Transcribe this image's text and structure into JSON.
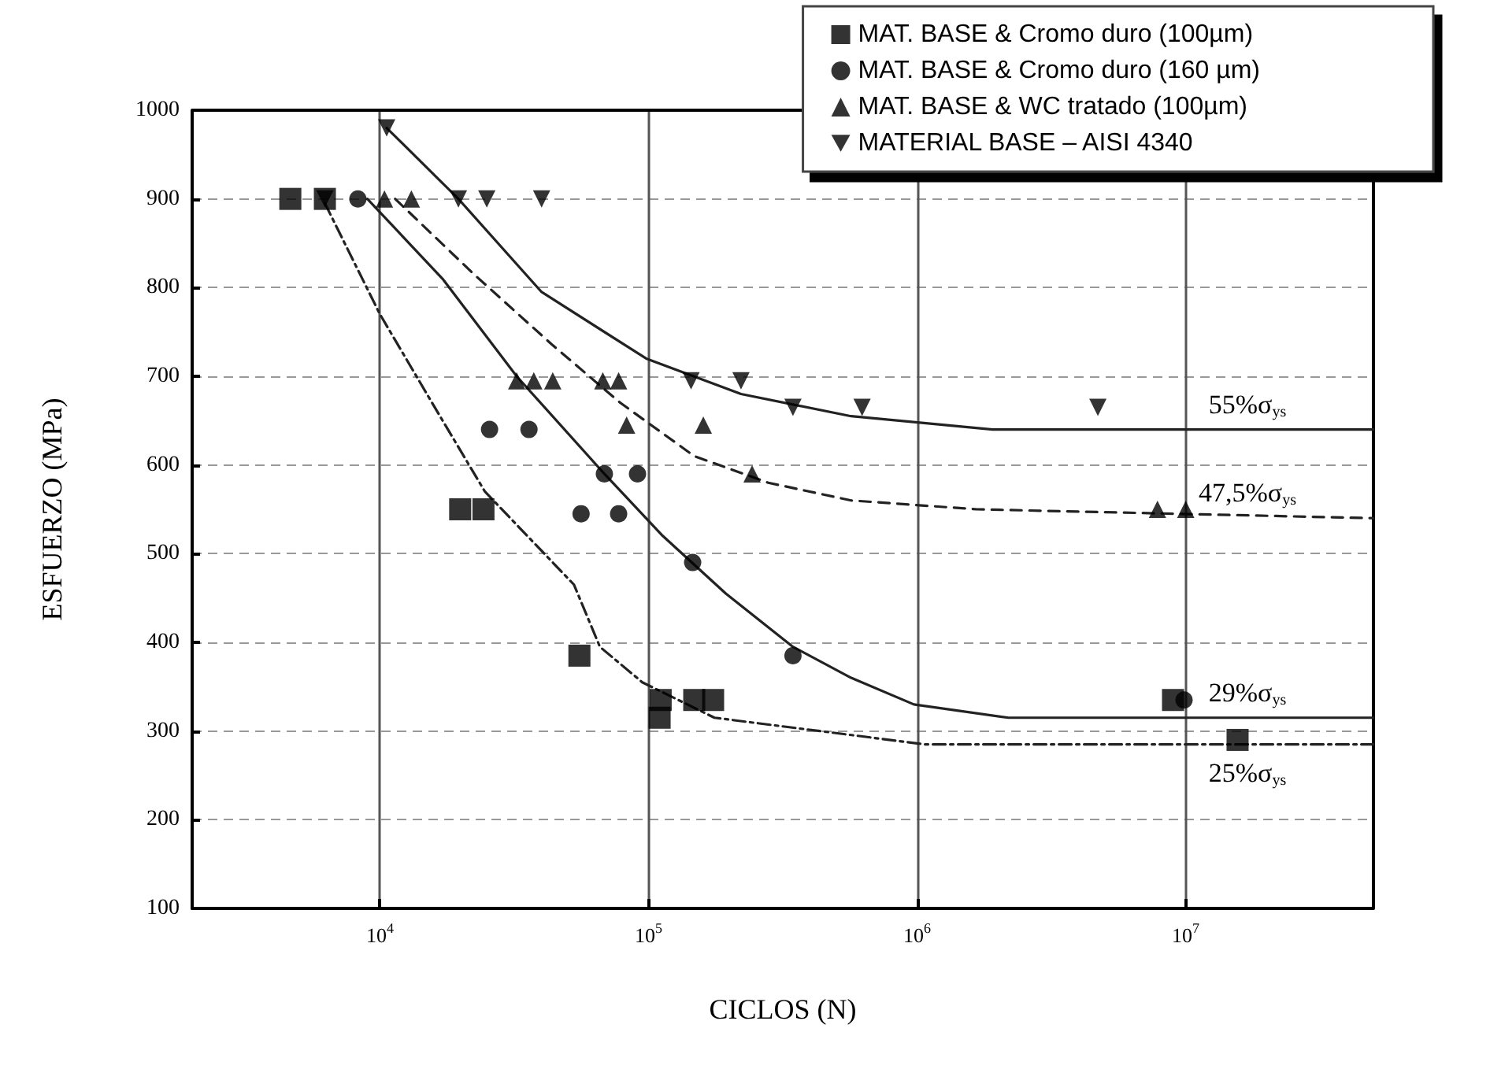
{
  "chart_data": {
    "type": "scatter",
    "xlabel": "CICLOS (N)",
    "ylabel": "ESFUERZO (MPa)",
    "log": "x",
    "grid": true,
    "legend": "top right",
    "xlim": [
      2000,
      50000000
    ],
    "ylim": [
      100,
      1000
    ],
    "xticks": [
      {
        "value": 10000,
        "label": "10$^{4}$"
      },
      {
        "value": 100000,
        "label": "10$^{5}$"
      },
      {
        "value": 1000000,
        "label": "10$^{6}$"
      },
      {
        "value": 10000000,
        "label": "10$^{7}$"
      }
    ],
    "yticks": [
      100,
      200,
      300,
      400,
      500,
      600,
      700,
      800,
      900,
      1000
    ],
    "series": [
      {
        "name": "MAT. BASE & Cromo duro (100µm)",
        "color": "#000000",
        "marker": "square",
        "x": [
          4640,
          6240,
          19900,
          24300,
          55300,
          111000,
          110000,
          148000,
          174000,
          8970000,
          15600000
        ],
        "values": [
          900,
          900,
          550,
          550,
          385,
          335,
          315,
          335,
          335,
          335,
          290
        ]
      },
      {
        "name": "MAT. BASE & Cromo duro (160 µm)",
        "color": "#000000",
        "marker": "circle",
        "x": [
          8280,
          25600,
          35900,
          68500,
          91000,
          56100,
          77400,
          146000,
          345000,
          9860000
        ],
        "values": [
          900,
          640,
          640,
          590,
          590,
          545,
          545,
          490,
          385,
          335
        ]
      },
      {
        "name": "MAT. BASE & WC tratado (100µm)",
        "color": "#000000",
        "marker": "triangle",
        "x": [
          10400,
          13100,
          32300,
          37400,
          44000,
          67600,
          77400,
          82900,
          160000,
          243000,
          7850000,
          10000000
        ],
        "values": [
          900,
          900,
          695,
          695,
          695,
          695,
          695,
          645,
          645,
          590,
          550,
          550
        ]
      },
      {
        "name": "MATERIAL BASE – AISI 4340",
        "color": "#000000",
        "marker": "triangle-down",
        "x": [
          10600,
          6240,
          19600,
          25000,
          40000,
          144000,
          221000,
          345000,
          624000,
          4710000
        ],
        "values": [
          980,
          900,
          900,
          900,
          900,
          695,
          695,
          665,
          665,
          665
        ]
      },
      {
        "type": "line",
        "name": "55%σ$_{ys}$",
        "color": "#222222",
        "line_style": "solid",
        "marker": "none",
        "x": [
          10600,
          19600,
          40000,
          98000,
          221000,
          568000,
          1910000,
          50000000
        ],
        "values": [
          980,
          900,
          795,
          720,
          680,
          655,
          640,
          640
        ]
      },
      {
        "type": "line",
        "name": "47,5%σ$_{ys}$",
        "color": "#222222",
        "line_style": "dashed",
        "marker": "none",
        "x": [
          11400,
          22400,
          44000,
          78600,
          148000,
          279000,
          568000,
          1670000,
          50000000
        ],
        "values": [
          900,
          815,
          735,
          670,
          610,
          580,
          560,
          550,
          540
        ]
      },
      {
        "type": "line",
        "name": "29%σ$_{ys}$",
        "color": "#222222",
        "line_style": "solid",
        "marker": "none",
        "x": [
          8980,
          17100,
          32300,
          68500,
          113000,
          194000,
          345000,
          568000,
          973000,
          2190000,
          50000000
        ],
        "values": [
          900,
          810,
          700,
          590,
          520,
          455,
          395,
          360,
          330,
          315,
          315
        ]
      },
      {
        "type": "line",
        "name": "25%σ$_{ys}$",
        "color": "#222222",
        "line_style": "dashdot",
        "marker": "none",
        "x": [
          6240,
          10000,
          16000,
          24600,
          52800,
          65900,
          94800,
          176000,
          434000,
          1070000,
          50000000
        ],
        "values": [
          895,
          770,
          665,
          570,
          465,
          395,
          355,
          315,
          300,
          285,
          285
        ]
      }
    ]
  }
}
